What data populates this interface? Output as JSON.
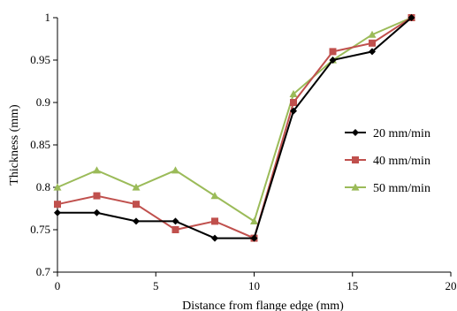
{
  "chart_data": {
    "type": "line",
    "title": "",
    "xlabel": "Distance from flange edge (mm)",
    "ylabel": "Thickness (mm)",
    "xlim": [
      0,
      20
    ],
    "ylim": [
      0.7,
      1.0
    ],
    "x_ticks": [
      0,
      5,
      10,
      15,
      20
    ],
    "y_ticks": [
      0.7,
      0.75,
      0.8,
      0.85,
      0.9,
      0.95,
      1.0
    ],
    "x_tick_labels": [
      "0",
      "5",
      "10",
      "15",
      "20"
    ],
    "y_tick_labels": [
      "0.7",
      "0.75",
      "0.8",
      "0.85",
      "0.9",
      "0.95",
      "1"
    ],
    "grid": false,
    "legend_position": "right",
    "x": [
      0,
      2,
      4,
      6,
      8,
      10,
      12,
      14,
      16,
      18
    ],
    "series": [
      {
        "name": "20 mm/min",
        "color": "#000000",
        "marker": "diamond",
        "values": [
          0.77,
          0.77,
          0.76,
          0.76,
          0.74,
          0.74,
          0.89,
          0.95,
          0.96,
          1.0
        ]
      },
      {
        "name": "40 mm/min",
        "color": "#c0504d",
        "marker": "square",
        "values": [
          0.78,
          0.79,
          0.78,
          0.75,
          0.76,
          0.74,
          0.9,
          0.96,
          0.97,
          1.0
        ]
      },
      {
        "name": "50 mm/min",
        "color": "#9bbb59",
        "marker": "triangle",
        "values": [
          0.8,
          0.82,
          0.8,
          0.82,
          0.79,
          0.76,
          0.91,
          0.95,
          0.98,
          1.0
        ]
      }
    ]
  }
}
